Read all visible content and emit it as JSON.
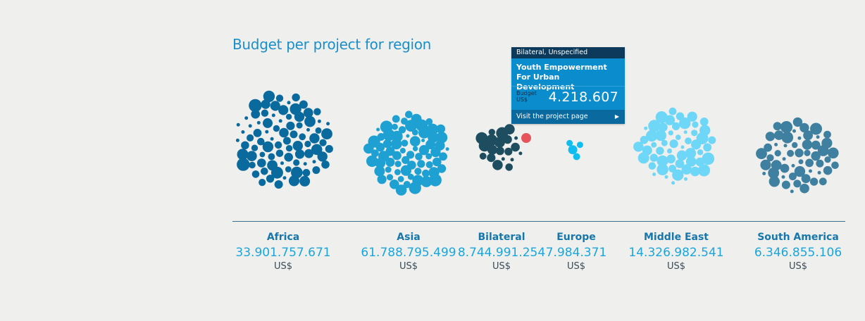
{
  "title": "Budget per project for region",
  "chart_data": {
    "type": "bubble-cluster",
    "title": "Budget per project for region",
    "unit": "US$",
    "regions": [
      {
        "name": "Africa",
        "total": "33.901.757.671",
        "unit": "US$",
        "color": "#0a6a9e"
      },
      {
        "name": "Asia",
        "total": "61.788.795.499",
        "unit": "US$",
        "color": "#1ea0d3"
      },
      {
        "name": "Bilateral",
        "total": "8.744.991.254",
        "unit": "US$",
        "color": "#1e4d60"
      },
      {
        "name": "Europe",
        "total": "7.984.371",
        "unit": "US$",
        "color": "#10bdf0"
      },
      {
        "name": "Middle East",
        "total": "14.326.982.541",
        "unit": "US$",
        "color": "#6ed6f7"
      },
      {
        "name": "South America",
        "total": "6.346.855.106",
        "unit": "US$",
        "color": "#3f7f9f"
      }
    ],
    "highlight_color": "#e5545b"
  },
  "tooltip": {
    "type": "Bilateral, Unspecified",
    "title_line1": "Youth Empowerment",
    "title_line2": "For Urban Development",
    "budget_label_line1": "Budget",
    "budget_label_line2": "US$",
    "budget_value": "4.218.607",
    "link_text": "Visit the project page",
    "link_arrow": "▶"
  }
}
